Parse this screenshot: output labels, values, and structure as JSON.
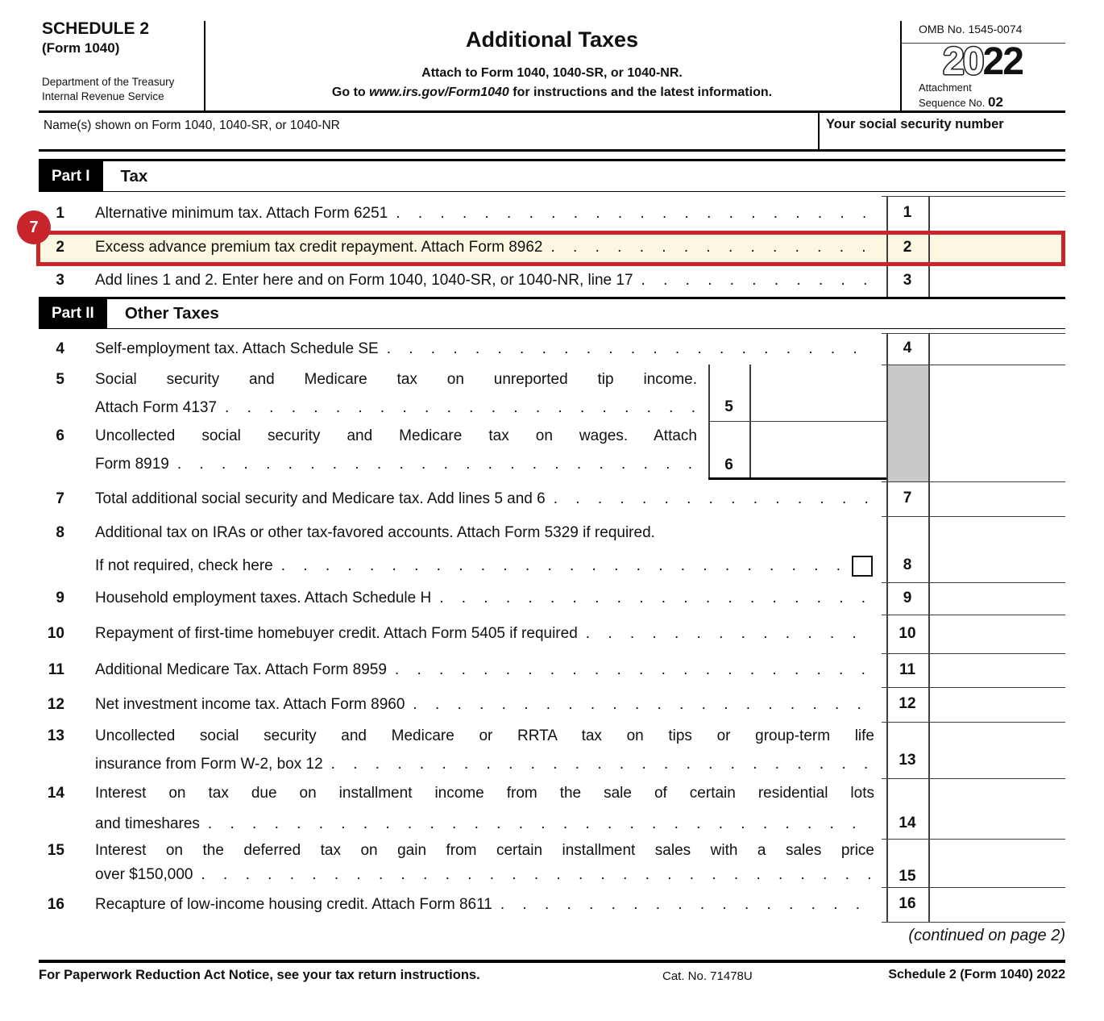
{
  "form": {
    "schedule": "SCHEDULE 2",
    "form_name": "(Form 1040)",
    "agency_line1": "Department of the Treasury",
    "agency_line2": "Internal Revenue Service",
    "title": "Additional Taxes",
    "subtitle1": "Attach to Form 1040, 1040-SR, or 1040-NR.",
    "subtitle2_prefix": "Go to ",
    "subtitle2_url": "www.irs.gov/Form1040",
    "subtitle2_suffix": " for instructions and the latest information.",
    "omb": "OMB No. 1545-0074",
    "year_outline": "20",
    "year_bold": "22",
    "attachment_label": "Attachment",
    "sequence_label": "Sequence No. ",
    "sequence_no": "02",
    "name_label": "Name(s) shown on Form 1040, 1040-SR, or 1040-NR",
    "ssn_label": "Your social security number"
  },
  "parts": [
    {
      "label": "Part I",
      "title": "Tax"
    },
    {
      "label": "Part II",
      "title": "Other Taxes"
    }
  ],
  "rows": [
    {
      "num": "1",
      "lines": [
        "Alternative minimum tax. Attach Form 6251"
      ]
    },
    {
      "num": "2",
      "lines": [
        "Excess advance premium tax credit repayment. Attach Form 8962"
      ]
    },
    {
      "num": "3",
      "lines": [
        "Add lines 1 and 2. Enter here and on Form 1040, 1040-SR, or 1040-NR, line 17"
      ]
    },
    {
      "num": "4",
      "lines": [
        "Self-employment tax. Attach Schedule SE"
      ]
    },
    {
      "num": "5",
      "lines": [
        "Social security and Medicare tax on unreported tip income.",
        "Attach Form 4137"
      ]
    },
    {
      "num": "6",
      "lines": [
        "Uncollected social security and Medicare tax on wages. Attach",
        "Form 8919"
      ]
    },
    {
      "num": "7",
      "lines": [
        "Total additional social security and Medicare tax. Add lines 5 and 6"
      ]
    },
    {
      "num": "8",
      "lines": [
        "Additional tax on IRAs or other tax-favored accounts. Attach Form 5329 if required.",
        "If not required, check here"
      ]
    },
    {
      "num": "9",
      "lines": [
        "Household employment taxes. Attach Schedule H"
      ]
    },
    {
      "num": "10",
      "lines": [
        "Repayment of first-time homebuyer credit. Attach Form 5405 if required"
      ]
    },
    {
      "num": "11",
      "lines": [
        "Additional Medicare Tax. Attach Form 8959"
      ]
    },
    {
      "num": "12",
      "lines": [
        "Net investment income tax. Attach Form 8960"
      ]
    },
    {
      "num": "13",
      "lines": [
        "Uncollected social security and Medicare or RRTA tax on tips or group-term life",
        "insurance from Form W-2, box 12"
      ]
    },
    {
      "num": "14",
      "lines": [
        "Interest on tax due on installment income from the sale of certain residential lots",
        "and timeshares"
      ]
    },
    {
      "num": "15",
      "lines": [
        "Interest on the deferred tax on gain from certain installment sales with a sales price",
        "over $150,000"
      ]
    },
    {
      "num": "16",
      "lines": [
        "Recapture of low-income housing credit. Attach Form 8611"
      ]
    }
  ],
  "annotation": {
    "badge": "7"
  },
  "footer": {
    "continued": "(continued on page 2)",
    "left": "For Paperwork Reduction Act Notice, see your tax return instructions.",
    "cat": "Cat. No. 71478U",
    "right": "Schedule 2 (Form 1040) 2022"
  },
  "colors": {
    "highlight_border": "#c8242c",
    "highlight_fill": "#fbf7e0",
    "shaded_cell": "#c9c9c9"
  }
}
